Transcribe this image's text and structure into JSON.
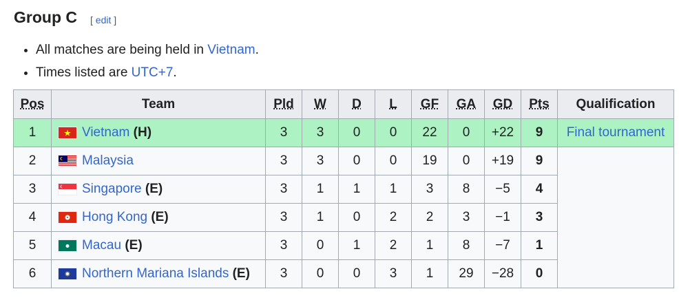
{
  "heading": "Group C",
  "edit_open": "[",
  "edit_label": "edit",
  "edit_close": "]",
  "notes": [
    {
      "pre": "All matches are being held in ",
      "link": "Vietnam",
      "post": "."
    },
    {
      "pre": "Times listed are ",
      "link": "UTC+7",
      "post": "."
    }
  ],
  "columns": [
    "Pos",
    "Team",
    "Pld",
    "W",
    "D",
    "L",
    "GF",
    "GA",
    "GD",
    "Pts",
    "Qualification"
  ],
  "rows": [
    {
      "pos": "1",
      "team": "Vietnam",
      "suffix": "(H)",
      "flag": "vietnam-flag",
      "pld": "3",
      "w": "3",
      "d": "0",
      "l": "0",
      "gf": "22",
      "ga": "0",
      "gd": "+22",
      "pts": "9",
      "qual": "Final tournament"
    },
    {
      "pos": "2",
      "team": "Malaysia",
      "suffix": "",
      "flag": "malaysia-flag",
      "pld": "3",
      "w": "3",
      "d": "0",
      "l": "0",
      "gf": "19",
      "ga": "0",
      "gd": "+19",
      "pts": "9"
    },
    {
      "pos": "3",
      "team": "Singapore",
      "suffix": "(E)",
      "flag": "singapore-flag",
      "pld": "3",
      "w": "1",
      "d": "1",
      "l": "1",
      "gf": "3",
      "ga": "8",
      "gd": "−5",
      "pts": "4"
    },
    {
      "pos": "4",
      "team": "Hong Kong",
      "suffix": "(E)",
      "flag": "hong-kong-flag",
      "pld": "3",
      "w": "1",
      "d": "0",
      "l": "2",
      "gf": "2",
      "ga": "3",
      "gd": "−1",
      "pts": "3"
    },
    {
      "pos": "5",
      "team": "Macau",
      "suffix": "(E)",
      "flag": "macau-flag",
      "pld": "3",
      "w": "0",
      "d": "1",
      "l": "2",
      "gf": "1",
      "ga": "8",
      "gd": "−7",
      "pts": "1"
    },
    {
      "pos": "6",
      "team": "Northern Mariana Islands",
      "suffix": "(E)",
      "flag": "northern-mariana-islands-flag",
      "pld": "3",
      "w": "0",
      "d": "0",
      "l": "3",
      "gf": "1",
      "ga": "29",
      "gd": "−28",
      "pts": "0"
    }
  ],
  "colors": {
    "qualified": "#acf2c3",
    "link": "#3366cc",
    "header": "#eaecf0"
  }
}
